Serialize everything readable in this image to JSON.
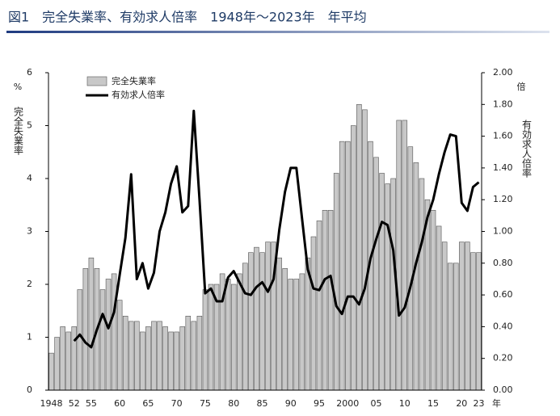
{
  "chart_data": {
    "type": "bar_line",
    "title": "図1　完全失業率、有効求人倍率　1948年～2023年　年平均",
    "y_label": "完全失業率",
    "y_unit": "%",
    "y2_label": "有効求人倍率",
    "y2_unit": "倍",
    "x_unit": "年",
    "categories": [
      "1948",
      null,
      null,
      null,
      "52",
      null,
      null,
      "55",
      null,
      null,
      null,
      null,
      "60",
      null,
      null,
      null,
      null,
      "65",
      null,
      null,
      null,
      null,
      "70",
      null,
      null,
      null,
      null,
      "75",
      null,
      null,
      null,
      null,
      "80",
      null,
      null,
      null,
      null,
      "85",
      null,
      null,
      null,
      null,
      "90",
      null,
      null,
      null,
      null,
      "95",
      null,
      null,
      null,
      null,
      "2000",
      null,
      null,
      null,
      null,
      "05",
      null,
      null,
      null,
      null,
      "10",
      null,
      null,
      null,
      null,
      "15",
      null,
      null,
      null,
      null,
      "20",
      null,
      null,
      "23"
    ],
    "series": [
      {
        "name": "完全失業率",
        "type": "bar",
        "color": "#c8c8c8",
        "values": [
          0.7,
          1.0,
          1.2,
          1.1,
          1.2,
          1.9,
          2.3,
          2.5,
          2.3,
          1.9,
          2.1,
          2.2,
          1.7,
          1.4,
          1.3,
          1.3,
          1.1,
          1.2,
          1.3,
          1.3,
          1.2,
          1.1,
          1.1,
          1.2,
          1.4,
          1.3,
          1.4,
          1.9,
          2.0,
          2.0,
          2.2,
          2.1,
          2.0,
          2.2,
          2.4,
          2.6,
          2.7,
          2.6,
          2.8,
          2.8,
          2.5,
          2.3,
          2.1,
          2.1,
          2.2,
          2.5,
          2.9,
          3.2,
          3.4,
          3.4,
          4.1,
          4.7,
          4.7,
          5.0,
          5.4,
          5.3,
          4.7,
          4.4,
          4.1,
          3.9,
          4.0,
          5.1,
          5.1,
          4.6,
          4.3,
          4.0,
          3.6,
          3.4,
          3.1,
          2.8,
          2.4,
          2.4,
          2.8,
          2.8,
          2.6,
          2.6
        ]
      },
      {
        "name": "有効求人倍率",
        "type": "line",
        "axis": "y2",
        "color": "#000000",
        "values": [
          null,
          null,
          null,
          null,
          0.31,
          0.35,
          0.3,
          0.27,
          0.38,
          0.48,
          0.39,
          0.49,
          0.73,
          0.96,
          1.36,
          0.7,
          0.8,
          0.64,
          0.74,
          1.0,
          1.12,
          1.3,
          1.41,
          1.12,
          1.16,
          1.76,
          1.2,
          0.61,
          0.64,
          0.56,
          0.56,
          0.71,
          0.75,
          0.68,
          0.61,
          0.6,
          0.65,
          0.68,
          0.62,
          0.7,
          1.01,
          1.25,
          1.4,
          1.4,
          1.08,
          0.76,
          0.64,
          0.63,
          0.7,
          0.72,
          0.53,
          0.48,
          0.59,
          0.59,
          0.54,
          0.64,
          0.83,
          0.95,
          1.06,
          1.04,
          0.88,
          0.47,
          0.52,
          0.65,
          0.8,
          0.93,
          1.09,
          1.2,
          1.36,
          1.5,
          1.61,
          1.6,
          1.18,
          1.13,
          1.28,
          1.31
        ]
      }
    ],
    "ylim": [
      0,
      6
    ],
    "yticks": [
      0,
      1,
      2,
      3,
      4,
      5,
      6
    ],
    "y2lim": [
      0,
      2
    ],
    "y2ticks": [
      {
        "value": 0,
        "label": "0.00"
      },
      {
        "value": 0.2,
        "label": "0.20"
      },
      {
        "value": 0.4,
        "label": "0.40"
      },
      {
        "value": 0.6,
        "label": "0.60"
      },
      {
        "value": 0.8,
        "label": "0.80"
      },
      {
        "value": 1,
        "label": "1.00"
      },
      {
        "value": 1.2,
        "label": "1.20"
      },
      {
        "value": 1.4,
        "label": "1.40"
      },
      {
        "value": 1.6,
        "label": "1.60"
      },
      {
        "value": 1.8,
        "label": "1.80"
      },
      {
        "value": 2,
        "label": "2.00"
      }
    ],
    "legend": "upper left",
    "grid": false
  }
}
